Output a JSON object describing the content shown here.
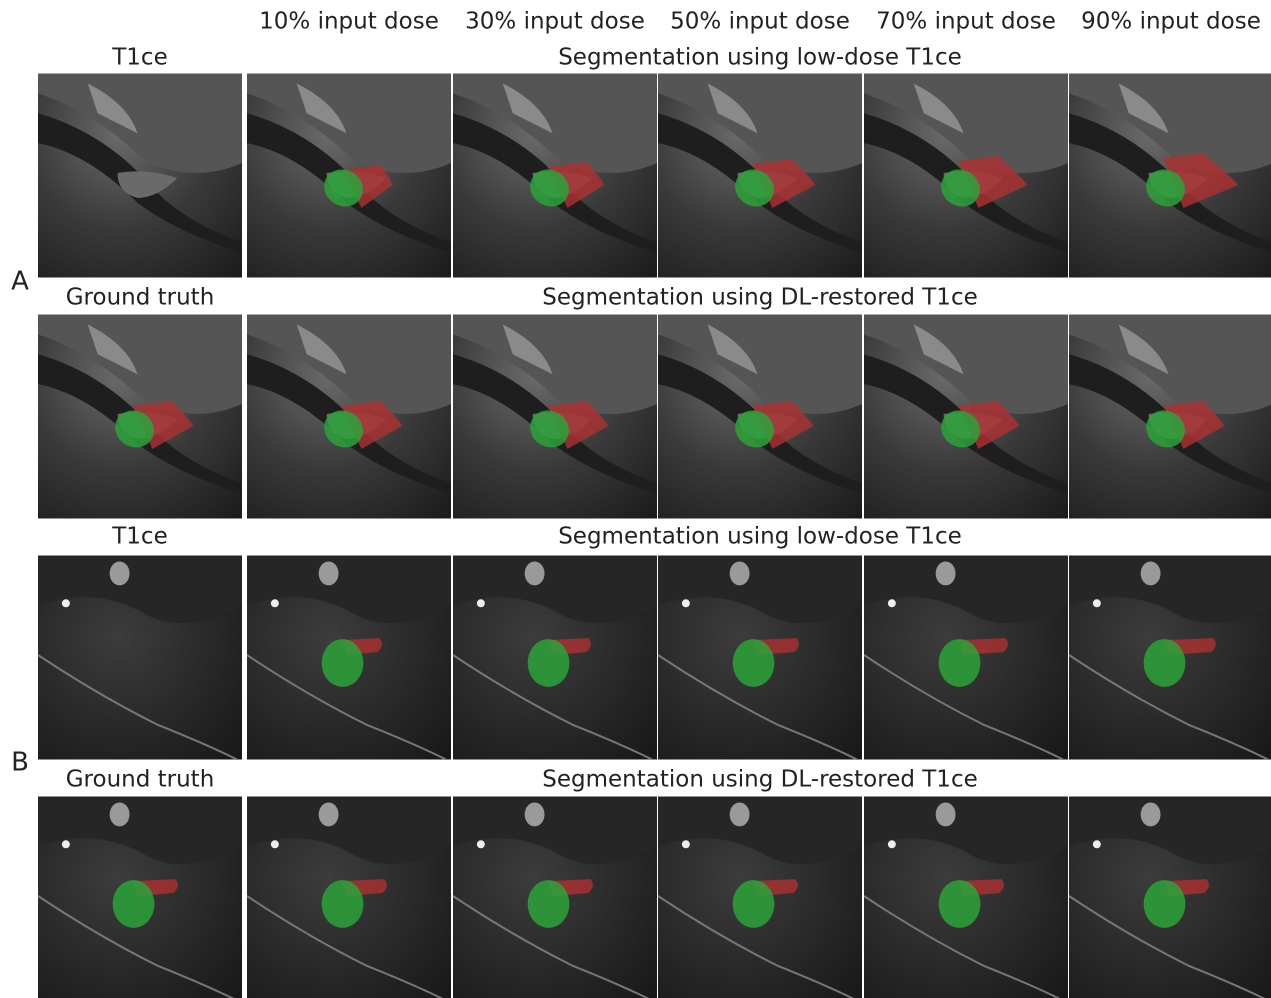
{
  "column_headers": [
    "10% input dose",
    "30% input dose",
    "50% input dose",
    "70% input dose",
    "90% input dose"
  ],
  "panels": [
    {
      "label": "A",
      "rows": [
        {
          "left_label": "T1ce",
          "span_label": "Segmentation using low-dose T1ce"
        },
        {
          "left_label": "Ground truth",
          "span_label": "Segmentation using DL-restored T1ce"
        }
      ]
    },
    {
      "label": "B",
      "rows": [
        {
          "left_label": "T1ce",
          "span_label": "Segmentation using low-dose T1ce"
        },
        {
          "left_label": "Ground truth",
          "span_label": "Segmentation using DL-restored T1ce"
        }
      ]
    }
  ]
}
